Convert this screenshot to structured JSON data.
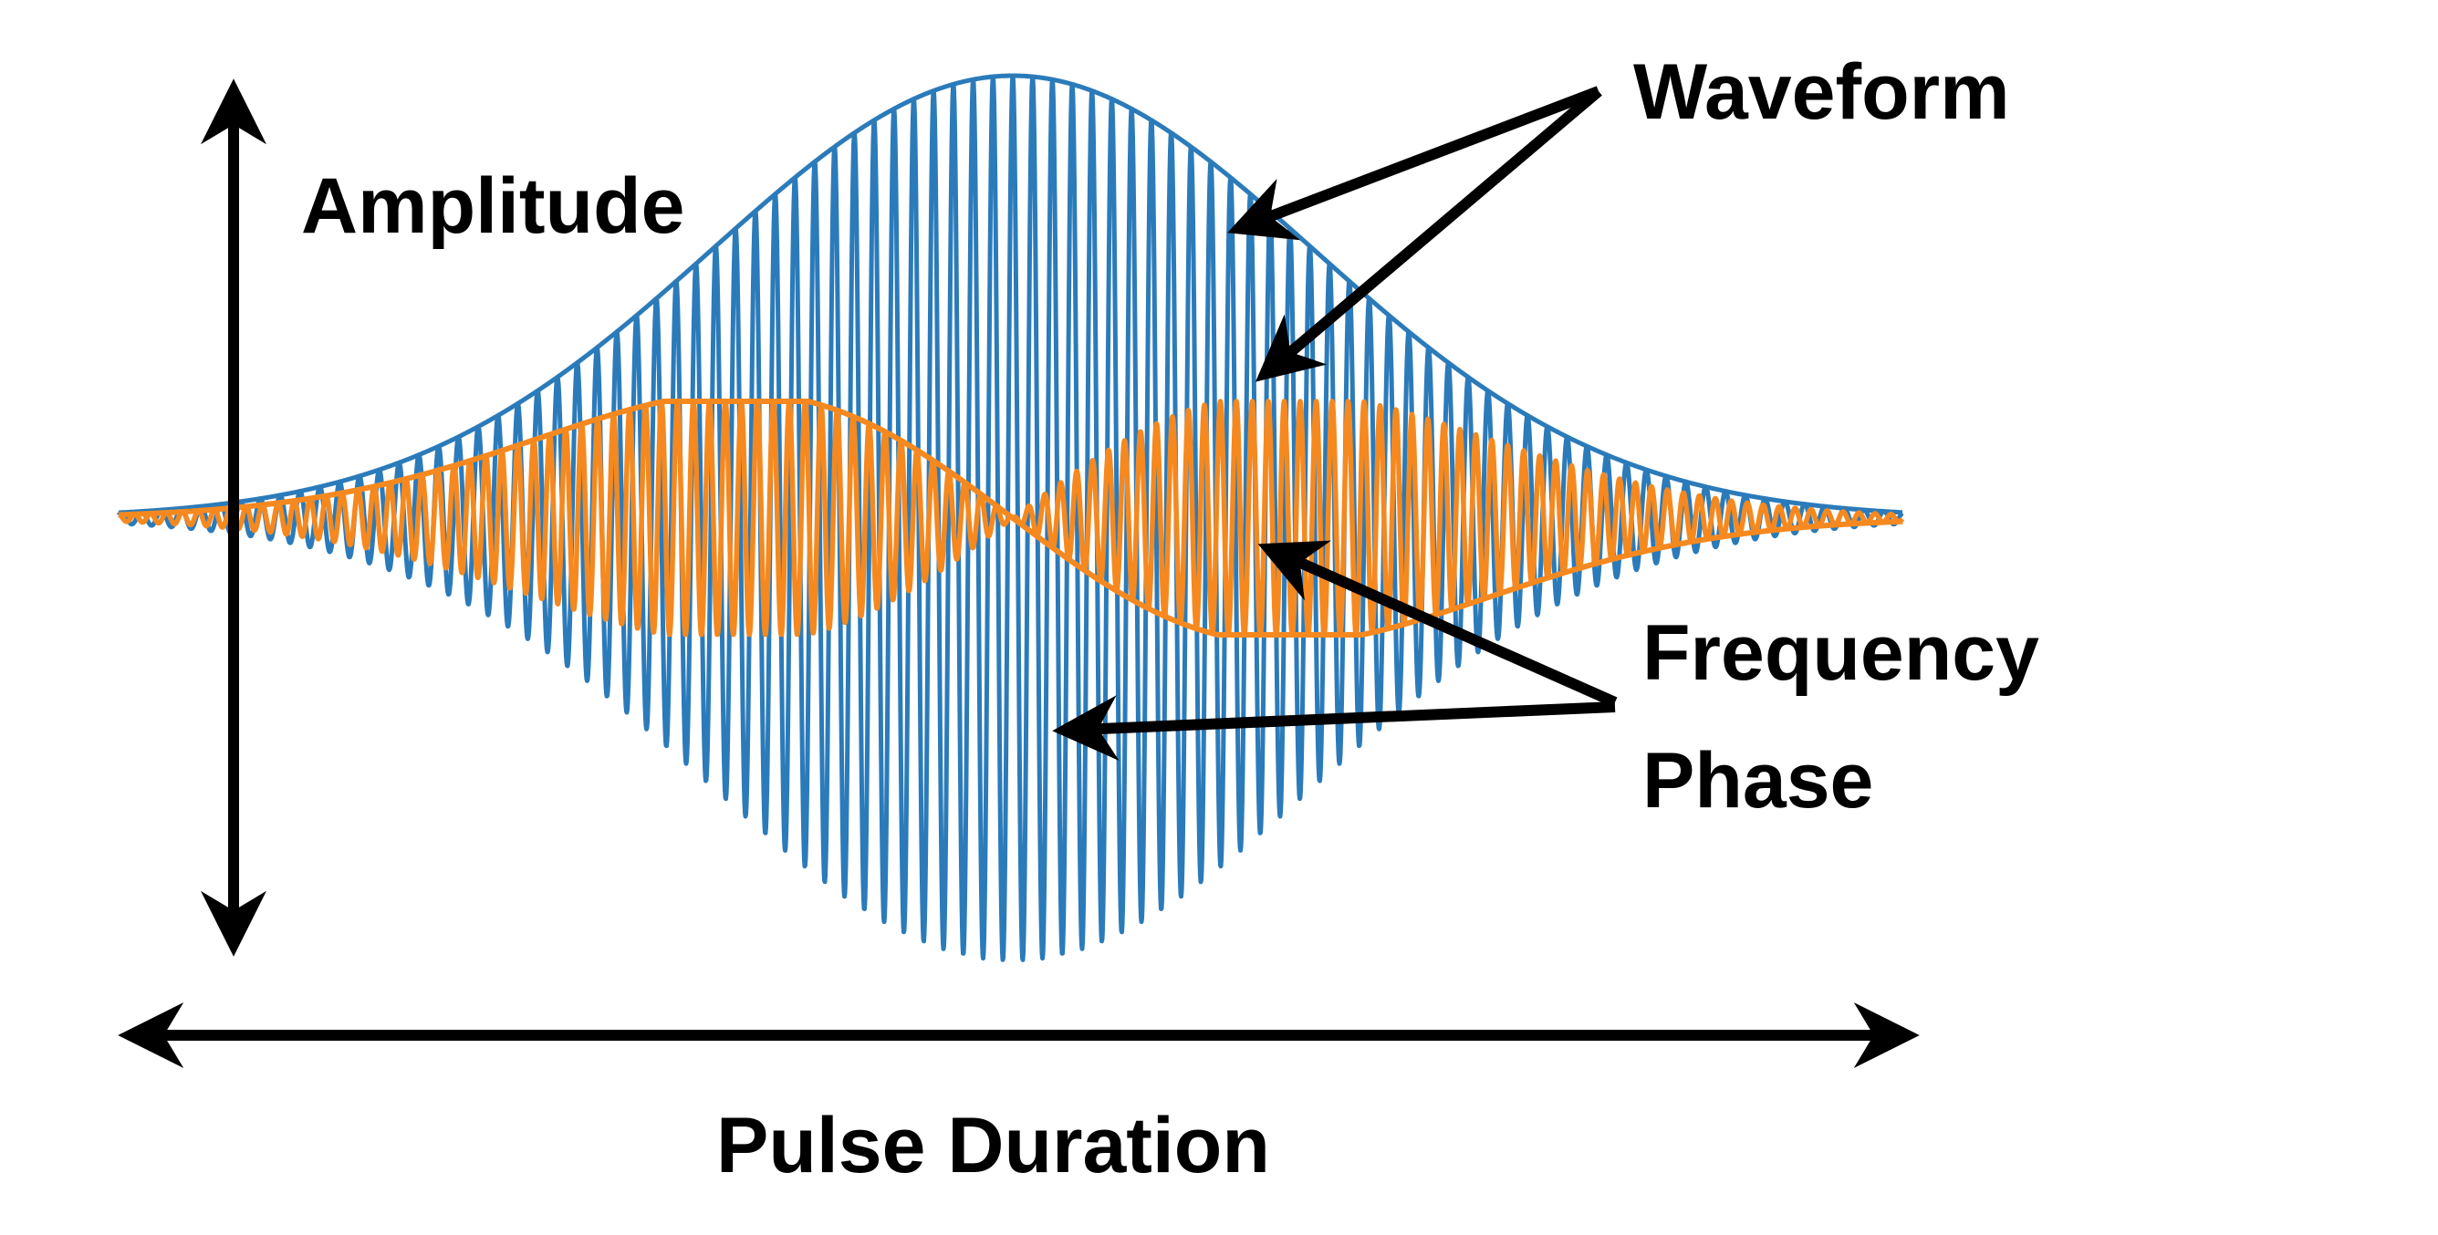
{
  "labels": {
    "amplitude": "Amplitude",
    "waveform": "Waveform",
    "frequency": "Frequency",
    "phase": "Phase",
    "pulse_duration": "Pulse Duration"
  },
  "colors": {
    "carrier": "#2b7bba",
    "modulated": "#f5891f",
    "ink": "#000000",
    "background": "#ffffff"
  }
}
